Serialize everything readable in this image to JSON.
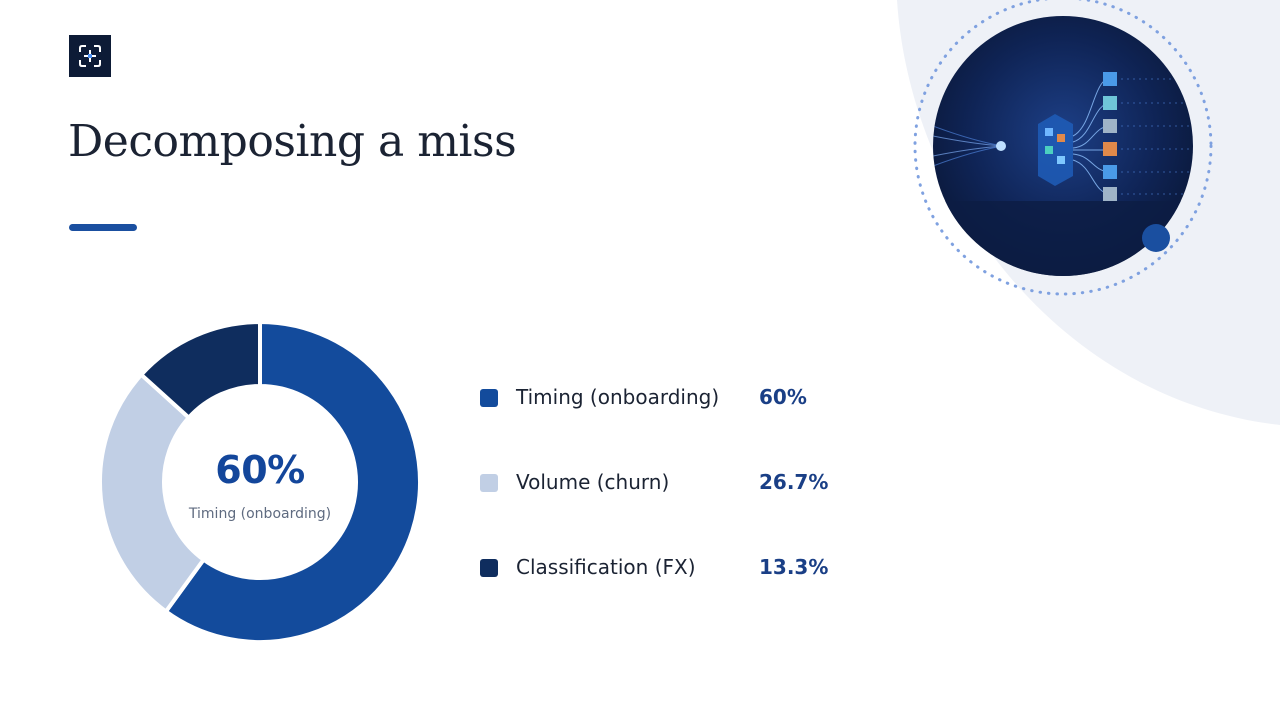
{
  "logo": {
    "icon": "crosshair-frame-icon"
  },
  "title": "Decomposing a miss",
  "accent_color": "#1a4fa0",
  "chart_data": {
    "type": "pie",
    "categories": [
      "Timing (onboarding)",
      "Volume (churn)",
      "Classification (FX)"
    ],
    "values": [
      60,
      26.7,
      13.3
    ],
    "value_labels": [
      "60%",
      "26.7%",
      "13.3%"
    ],
    "colors": [
      "#134b9c",
      "#c1cfe5",
      "#0f2d5e"
    ],
    "center_value": "60%",
    "center_label": "Timing (onboarding)"
  },
  "hero_image": {
    "icon": "data-cube-network-illustration"
  }
}
